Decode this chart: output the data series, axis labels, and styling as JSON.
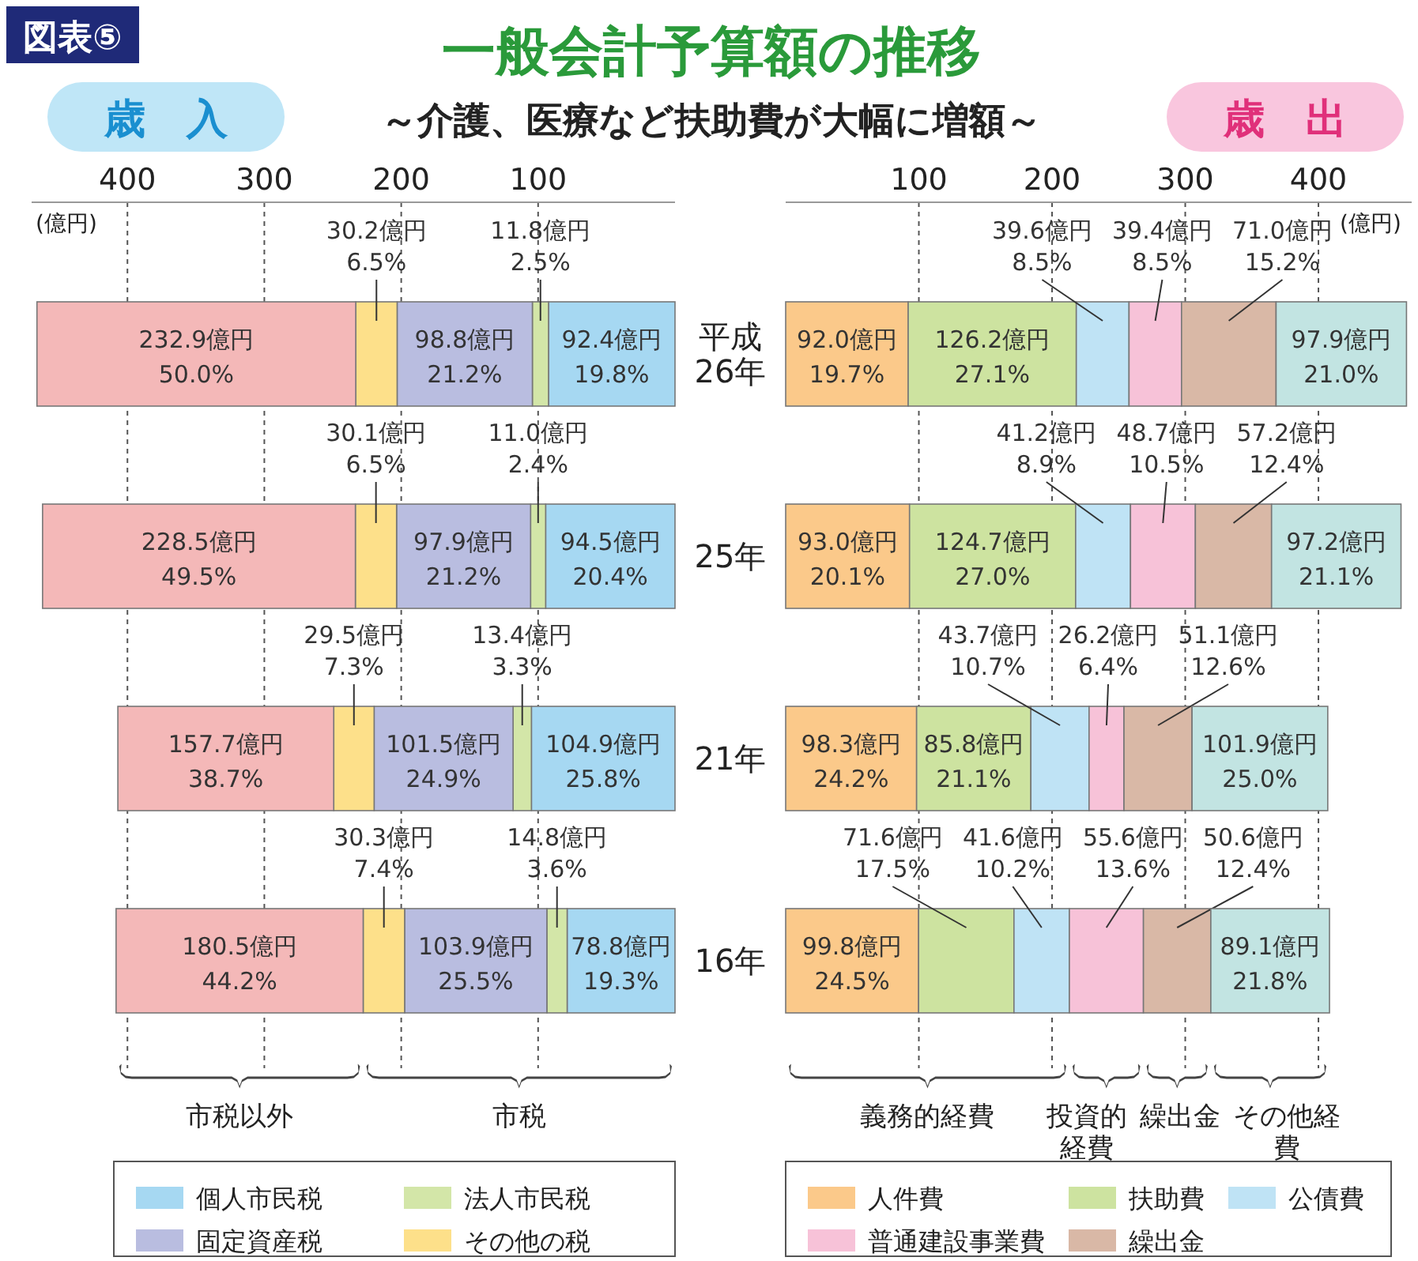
{
  "chart_data": [
    {
      "type": "bar",
      "orientation": "horizontal",
      "stacked": true,
      "title": "一般会計予算額の推移",
      "subtitle": "～介護、医療など扶助費が大幅に増額～",
      "xlabel": "(億円)",
      "annotations": [
        "図表⑤",
        "歳　入",
        "市税以外",
        "市税"
      ],
      "categories": [
        "平成26年",
        "25年",
        "21年",
        "16年"
      ],
      "xlim": [
        470,
        0
      ],
      "xticks": [
        100,
        200,
        300,
        400
      ],
      "grid": "x",
      "legend": "bottom",
      "series": [
        {
          "name": "個人市民税",
          "color": "#a6d8f2",
          "values": [
            92.4,
            94.5,
            104.9,
            78.8
          ],
          "value_labels": [
            "92.4億円\n19.8%",
            "94.5億円\n20.4%",
            "104.9億円\n25.8%",
            "78.8億円\n19.3%"
          ]
        },
        {
          "name": "法人市民税",
          "color": "#d3e6a8",
          "values": [
            11.8,
            11.0,
            13.4,
            14.8
          ],
          "value_labels": [
            "11.8億円\n2.5%",
            "11.0億円\n2.4%",
            "13.4億円\n3.3%",
            "14.8億円\n3.6%"
          ]
        },
        {
          "name": "固定資産税",
          "color": "#b9bde0",
          "values": [
            98.8,
            97.9,
            101.5,
            103.9
          ],
          "value_labels": [
            "98.8億円\n21.2%",
            "97.9億円\n21.2%",
            "101.5億円\n24.9%",
            "103.9億円\n25.5%"
          ]
        },
        {
          "name": "その他の税",
          "color": "#fde08a",
          "values": [
            30.2,
            30.1,
            29.5,
            30.3
          ],
          "value_labels": [
            "30.2億円\n6.5%",
            "30.1億円\n6.5%",
            "29.5億円\n7.3%",
            "30.3億円\n7.4%"
          ]
        },
        {
          "color": "#f4b8b8",
          "values": [
            232.9,
            228.5,
            157.7,
            180.5
          ],
          "value_labels": [
            "232.9億円\n50.0%",
            "228.5億円\n49.5%",
            "157.7億円\n38.7%",
            "180.5億円\n44.2%"
          ]
        }
      ]
    },
    {
      "type": "bar",
      "orientation": "horizontal",
      "stacked": true,
      "title": "歳　出",
      "xlabel": "(億円)",
      "annotations": [
        "義務的経費",
        "投資的経費",
        "繰出金",
        "その他経費"
      ],
      "categories": [
        "平成26年",
        "25年",
        "21年",
        "16年"
      ],
      "tick_labels": "x",
      "xlim": [
        0,
        470
      ],
      "xticks": [
        100,
        200,
        300,
        400
      ],
      "grid": "x",
      "legend": "bottom",
      "series": [
        {
          "name": "人件費",
          "color": "#fbc98a",
          "values": [
            92.0,
            93.0,
            98.3,
            99.8
          ],
          "value_labels": [
            "92.0億円\n19.7%",
            "93.0億円\n20.1%",
            "98.3億円\n24.2%",
            "99.8億円\n24.5%"
          ]
        },
        {
          "name": "扶助費",
          "color": "#cde3a0",
          "values": [
            126.2,
            124.7,
            85.8,
            71.6
          ],
          "value_labels": [
            "126.2億円\n27.1%",
            "124.7億円\n27.0%",
            "85.8億円\n21.1%",
            "71.6億円\n17.5%"
          ]
        },
        {
          "name": "公債費",
          "color": "#bfe3f5",
          "values": [
            39.6,
            41.2,
            43.7,
            41.6
          ],
          "value_labels": [
            "39.6億円\n8.5%",
            "41.2億円\n8.9%",
            "43.7億円\n10.7%",
            "41.6億円\n10.2%"
          ]
        },
        {
          "name": "普通建設事業費",
          "color": "#f7c2d8",
          "values": [
            39.4,
            48.7,
            26.2,
            55.6
          ],
          "value_labels": [
            "39.4億円\n8.5%",
            "48.7億円\n10.5%",
            "26.2億円\n6.4%",
            "55.6億円\n13.6%"
          ]
        },
        {
          "name": "繰出金",
          "color": "#d9b8a6",
          "values": [
            71.0,
            57.2,
            51.1,
            50.6
          ],
          "value_labels": [
            "71.0億円\n15.2%",
            "57.2億円\n12.4%",
            "51.1億円\n12.6%",
            "50.6億円\n12.4%"
          ]
        },
        {
          "color": "#c2e4e2",
          "values": [
            97.9,
            97.2,
            101.9,
            89.1
          ],
          "value_labels": [
            "97.9億円\n21.0%",
            "97.2億円\n21.1%",
            "101.9億円\n25.0%",
            "89.1億円\n21.8%"
          ]
        }
      ]
    }
  ]
}
